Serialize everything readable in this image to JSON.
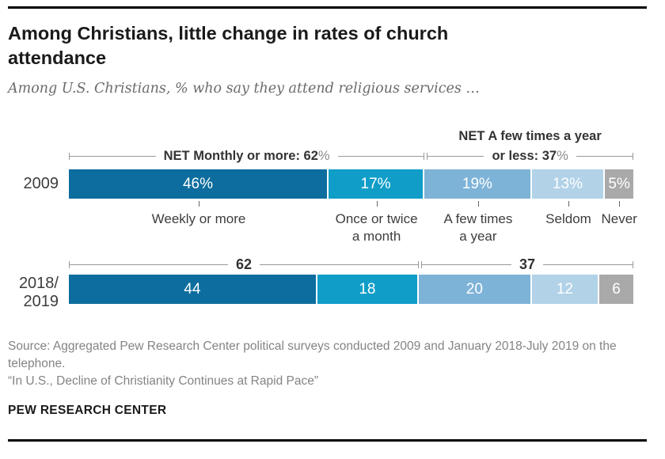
{
  "page": {
    "title": "Among Christians, little change in rates of church attendance",
    "subtitle": "Among U.S. Christians, % who say they attend religious services …"
  },
  "chart_data": {
    "type": "bar",
    "stacked": true,
    "orientation": "horizontal",
    "unit": "%",
    "categories": [
      "Weekly or more",
      "Once or twice a month",
      "A few times a year",
      "Seldom",
      "Never"
    ],
    "series": [
      {
        "name": "2009",
        "values": [
          46,
          17,
          19,
          13,
          5
        ],
        "labels": [
          "46%",
          "17%",
          "19%",
          "13%",
          "5%"
        ]
      },
      {
        "name": "2018/2019",
        "values": [
          44,
          18,
          20,
          12,
          6
        ],
        "labels": [
          "44",
          "18",
          "20",
          "12",
          "6"
        ]
      }
    ],
    "nets": {
      "row1_left_text": "NET Monthly or more: 62",
      "row1_left_pct": "%",
      "row1_right_line1": "NET A few times a year",
      "row1_right_line2_text": "or less: 37",
      "row1_right_line2_pct": "%",
      "row2_left": "62",
      "row2_right": "37"
    },
    "spans": {
      "row1_left": 63,
      "row1_right": 37,
      "row2_left": 62,
      "row2_right": 38
    },
    "tick_centers": [
      23,
      54.5,
      72.5,
      88.5,
      97.5
    ],
    "colors": {
      "segments": [
        "#0d6d9e",
        "#109dc8",
        "#7eb3d8",
        "#b1d2e7",
        "#a9a9a9"
      ],
      "bracket_line": "#999999",
      "value_text": "#ffffff"
    }
  },
  "rows": {
    "row1_label": "2009",
    "row2_label_line1": "2018/",
    "row2_label_line2": "2019"
  },
  "categories_display": {
    "cat1_line1": "Weekly or more",
    "cat2_line1": "Once or twice",
    "cat2_line2": "a month",
    "cat3_line1": "A few times",
    "cat3_line2": "a year",
    "cat4_line1": "Seldom",
    "cat5_line1": "Never"
  },
  "footer": {
    "source_line1": "Source: Aggregated Pew Research Center political surveys conducted 2009 and January 2018-July 2019 on the telephone.",
    "source_line2": "“In U.S., Decline of Christianity Continues at Rapid Pace”",
    "brand": "PEW RESEARCH CENTER"
  }
}
